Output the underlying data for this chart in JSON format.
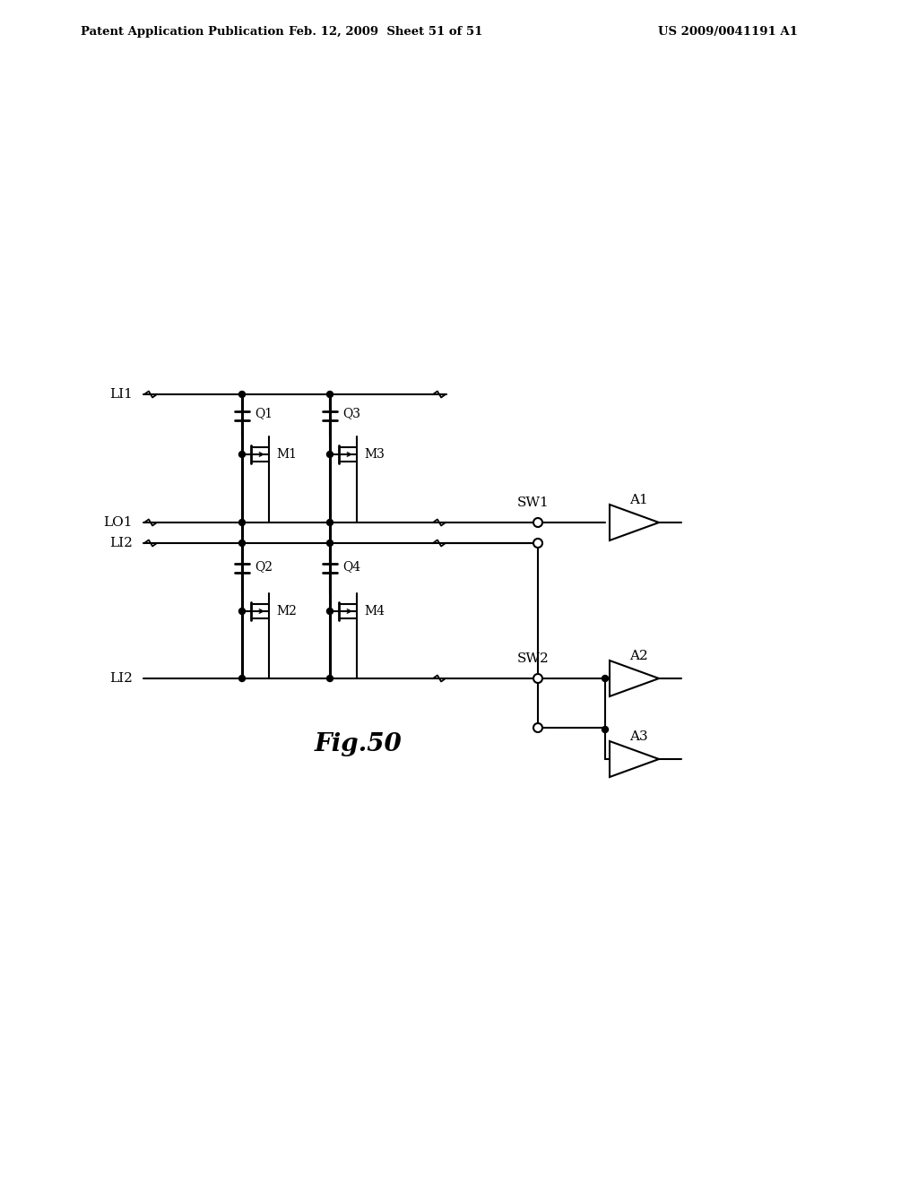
{
  "title": "Fig.50",
  "header_left": "Patent Application Publication",
  "header_mid": "Feb. 12, 2009  Sheet 51 of 51",
  "header_right": "US 2009/0041191 A1",
  "bg_color": "#ffffff",
  "line_color": "#000000",
  "fig_label": "Fig.50"
}
